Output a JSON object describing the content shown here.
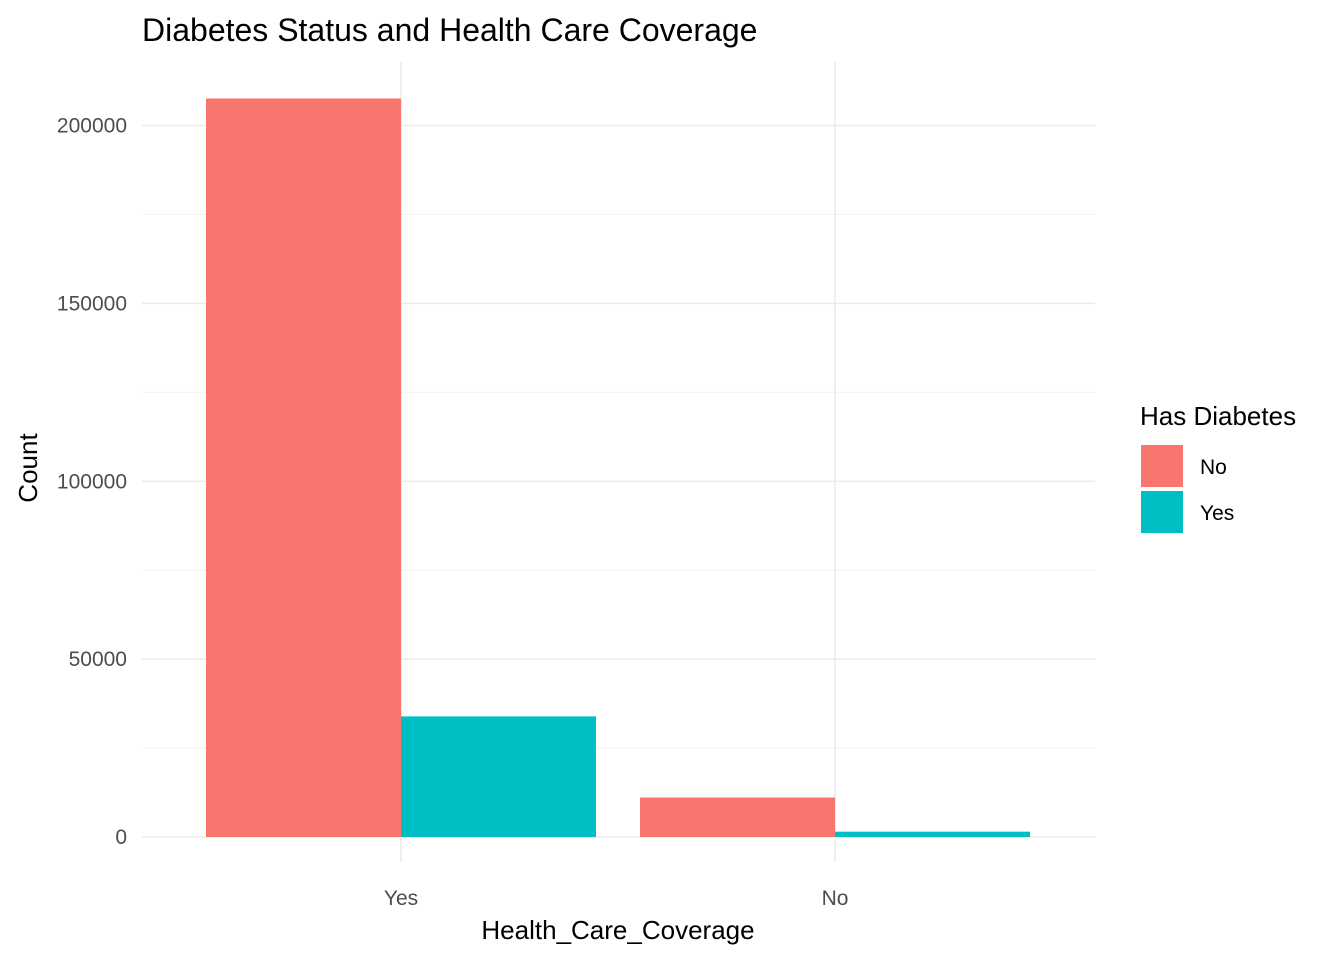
{
  "chart_data": {
    "type": "bar",
    "title": "Diabetes Status and Health Care Coverage",
    "xlabel": "Health_Care_Coverage",
    "ylabel": "Count",
    "categories": [
      "Yes",
      "No"
    ],
    "series": [
      {
        "name": "No",
        "values": [
          207600,
          11100
        ],
        "color": "#F8766D"
      },
      {
        "name": "Yes",
        "values": [
          33900,
          1500
        ],
        "color": "#00BFC4"
      }
    ],
    "ylim": [
      0,
      215000
    ],
    "y_ticks": [
      0,
      50000,
      100000,
      150000,
      200000
    ],
    "y_tick_labels": [
      "0",
      "50000",
      "100000",
      "150000",
      "200000"
    ],
    "legend": {
      "title": "Has Diabetes",
      "position": "right"
    },
    "grid": true
  }
}
